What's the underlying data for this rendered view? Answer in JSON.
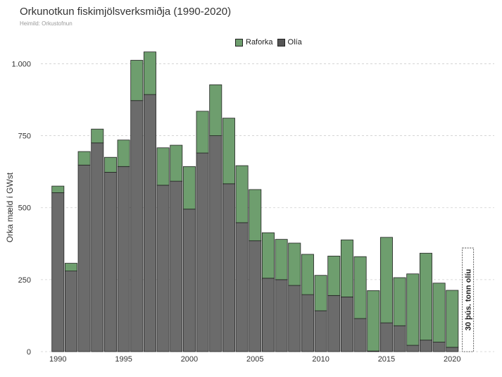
{
  "chart_data": {
    "type": "bar",
    "stacked": true,
    "title": "Orkunotkun fiskimjölsverksmiðja (1990-2020)",
    "subtitle": "Heimild: Orkustofnun",
    "ylabel": "Orka mæld í GWst",
    "xlabel": "",
    "ylim": [
      0,
      1050
    ],
    "xlim": [
      1988.7,
      2023.2
    ],
    "yticks": [
      0,
      250,
      500,
      750,
      1000
    ],
    "ytick_labels": [
      "0",
      "250",
      "500",
      "750",
      "1.000"
    ],
    "xticks": [
      1990,
      1995,
      2000,
      2005,
      2010,
      2015,
      2020
    ],
    "grid": true,
    "legend_position": "top",
    "x": [
      1990,
      1991,
      1992,
      1993,
      1994,
      1995,
      1996,
      1997,
      1998,
      1999,
      2000,
      2001,
      2002,
      2003,
      2004,
      2005,
      2006,
      2007,
      2008,
      2009,
      2010,
      2011,
      2012,
      2013,
      2014,
      2015,
      2016,
      2017,
      2018,
      2019,
      2020
    ],
    "series": [
      {
        "name": "Olía",
        "color": "#6b6b6b",
        "values": [
          552,
          280,
          648,
          725,
          623,
          643,
          872,
          893,
          578,
          592,
          495,
          690,
          750,
          583,
          448,
          385,
          255,
          250,
          230,
          198,
          142,
          195,
          190,
          115,
          2,
          100,
          90,
          22,
          40,
          33,
          15
        ]
      },
      {
        "name": "Raforka",
        "color": "#6e9e6e",
        "values": [
          23,
          27,
          47,
          48,
          52,
          92,
          140,
          148,
          130,
          125,
          148,
          145,
          177,
          228,
          198,
          178,
          158,
          140,
          147,
          140,
          123,
          137,
          198,
          215,
          210,
          297,
          167,
          248,
          302,
          205,
          198
        ]
      }
    ],
    "annotation": {
      "text": "30 þús. tonn olíu",
      "value": 360,
      "x": 2021.2
    }
  }
}
